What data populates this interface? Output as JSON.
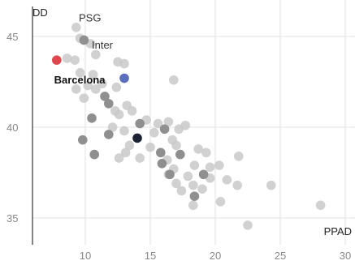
{
  "chart_data": {
    "type": "scatter",
    "xlabel": "PPAD",
    "ylabel": "DD",
    "xlim": [
      5,
      30
    ],
    "ylim": [
      33,
      47
    ],
    "x_ticks": [
      10,
      15,
      20,
      25,
      30
    ],
    "y_ticks": [
      35,
      40,
      45
    ],
    "grid": true,
    "colors": {
      "default": "#c9c9c9",
      "dark_grey": "#8f8f8f",
      "highlight_red": "#e0474c",
      "highlight_blue": "#5b6fbf",
      "highlight_black": "#1c2233"
    },
    "points": [
      {
        "x": 9.3,
        "y": 45.5
      },
      {
        "x": 9.6,
        "y": 44.9
      },
      {
        "x": 9.9,
        "y": 44.8,
        "tone": "dark"
      },
      {
        "x": 10.4,
        "y": 44.6
      },
      {
        "x": 8.6,
        "y": 43.8
      },
      {
        "x": 9.2,
        "y": 43.7
      },
      {
        "x": 10.8,
        "y": 44.0
      },
      {
        "x": 12.5,
        "y": 43.6
      },
      {
        "x": 13.0,
        "y": 43.5
      },
      {
        "x": 7.8,
        "y": 43.7,
        "tone": "red",
        "label": "Barcelona"
      },
      {
        "x": 9.6,
        "y": 43.0
      },
      {
        "x": 10.6,
        "y": 42.9
      },
      {
        "x": 11.3,
        "y": 42.4
      },
      {
        "x": 13.0,
        "y": 42.7,
        "tone": "blue"
      },
      {
        "x": 16.8,
        "y": 42.6
      },
      {
        "x": 10.2,
        "y": 42.3
      },
      {
        "x": 10.8,
        "y": 42.1
      },
      {
        "x": 12.4,
        "y": 42.2
      },
      {
        "x": 9.3,
        "y": 42.1
      },
      {
        "x": 9.9,
        "y": 41.6
      },
      {
        "x": 11.5,
        "y": 41.7,
        "tone": "dark"
      },
      {
        "x": 11.8,
        "y": 41.3,
        "tone": "dark"
      },
      {
        "x": 13.2,
        "y": 41.2
      },
      {
        "x": 12.3,
        "y": 40.9
      },
      {
        "x": 13.6,
        "y": 40.9
      },
      {
        "x": 10.5,
        "y": 40.5,
        "tone": "dark"
      },
      {
        "x": 12.6,
        "y": 40.7
      },
      {
        "x": 14.2,
        "y": 40.2,
        "tone": "dark"
      },
      {
        "x": 14.7,
        "y": 40.4
      },
      {
        "x": 15.6,
        "y": 40.2
      },
      {
        "x": 16.4,
        "y": 40.3
      },
      {
        "x": 12.1,
        "y": 40.0
      },
      {
        "x": 13.0,
        "y": 39.8
      },
      {
        "x": 15.3,
        "y": 39.7
      },
      {
        "x": 16.1,
        "y": 39.9,
        "tone": "dark"
      },
      {
        "x": 17.2,
        "y": 39.9
      },
      {
        "x": 17.7,
        "y": 40.1
      },
      {
        "x": 11.8,
        "y": 39.6,
        "tone": "dark"
      },
      {
        "x": 14.0,
        "y": 39.4,
        "tone": "black"
      },
      {
        "x": 16.7,
        "y": 39.3
      },
      {
        "x": 9.8,
        "y": 39.3,
        "tone": "dark"
      },
      {
        "x": 13.4,
        "y": 39.0
      },
      {
        "x": 15.0,
        "y": 38.9
      },
      {
        "x": 17.0,
        "y": 39.0
      },
      {
        "x": 18.7,
        "y": 38.8
      },
      {
        "x": 19.3,
        "y": 38.6
      },
      {
        "x": 13.1,
        "y": 38.6
      },
      {
        "x": 15.8,
        "y": 38.6,
        "tone": "dark"
      },
      {
        "x": 17.3,
        "y": 38.5,
        "tone": "dark"
      },
      {
        "x": 10.7,
        "y": 38.5,
        "tone": "dark"
      },
      {
        "x": 12.6,
        "y": 38.3
      },
      {
        "x": 14.2,
        "y": 38.3
      },
      {
        "x": 16.3,
        "y": 38.2
      },
      {
        "x": 21.8,
        "y": 38.4
      },
      {
        "x": 15.9,
        "y": 38.0,
        "tone": "dark"
      },
      {
        "x": 18.4,
        "y": 37.9
      },
      {
        "x": 19.6,
        "y": 37.8
      },
      {
        "x": 20.3,
        "y": 37.9
      },
      {
        "x": 16.8,
        "y": 37.7
      },
      {
        "x": 16.4,
        "y": 37.4
      },
      {
        "x": 17.9,
        "y": 37.3
      },
      {
        "x": 19.1,
        "y": 37.4,
        "tone": "dark"
      },
      {
        "x": 19.6,
        "y": 37.2
      },
      {
        "x": 20.9,
        "y": 37.1
      },
      {
        "x": 16.5,
        "y": 37.4,
        "tone": "dark"
      },
      {
        "x": 17.0,
        "y": 36.9
      },
      {
        "x": 18.3,
        "y": 36.8
      },
      {
        "x": 21.7,
        "y": 36.8
      },
      {
        "x": 24.3,
        "y": 36.8
      },
      {
        "x": 17.4,
        "y": 36.5
      },
      {
        "x": 19.0,
        "y": 36.6
      },
      {
        "x": 18.4,
        "y": 36.2,
        "tone": "dark"
      },
      {
        "x": 20.4,
        "y": 35.9
      },
      {
        "x": 18.3,
        "y": 35.7
      },
      {
        "x": 28.1,
        "y": 35.7
      },
      {
        "x": 22.5,
        "y": 34.6
      }
    ],
    "annotations": [
      {
        "text": "PSG",
        "x": 9.5,
        "y": 46.0,
        "weight": "normal"
      },
      {
        "text": "Inter",
        "x": 10.5,
        "y": 44.5,
        "weight": "normal"
      },
      {
        "text": "Barcelona",
        "x": 7.6,
        "y": 42.6,
        "weight": "bold"
      }
    ]
  }
}
